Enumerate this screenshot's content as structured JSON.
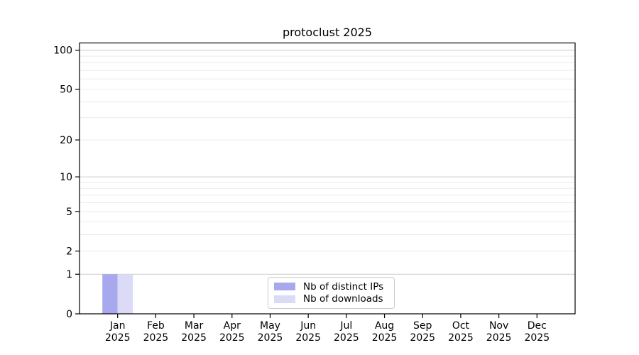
{
  "chart_data": {
    "type": "bar",
    "title": "protoclust 2025",
    "categories": [
      "Jan",
      "Feb",
      "Mar",
      "Apr",
      "May",
      "Jun",
      "Jul",
      "Aug",
      "Sep",
      "Oct",
      "Nov",
      "Dec"
    ],
    "x_tick_year": "2025",
    "series": [
      {
        "name": "Nb of distinct IPs",
        "color": "#a8a8ef",
        "values": [
          1,
          0,
          0,
          0,
          0,
          0,
          0,
          0,
          0,
          0,
          0,
          0
        ]
      },
      {
        "name": "Nb of downloads",
        "color": "#dbdbf8",
        "values": [
          1,
          0,
          0,
          0,
          0,
          0,
          0,
          0,
          0,
          0,
          0,
          0
        ]
      }
    ],
    "yscale": "log1p",
    "ylim": [
      0,
      100
    ],
    "yticks": [
      0,
      1,
      2,
      5,
      10,
      20,
      50,
      100
    ],
    "grid": {
      "major_values": [
        1,
        10,
        100
      ],
      "minor_values": [
        2,
        3,
        4,
        5,
        6,
        7,
        8,
        9,
        20,
        30,
        40,
        50,
        60,
        70,
        80,
        90
      ],
      "major_color": "#cccccc",
      "minor_color": "#ebebeb"
    },
    "legend_position": "lower center",
    "colors": {
      "axis": "#000000",
      "text": "#000000",
      "background": "#ffffff"
    }
  }
}
